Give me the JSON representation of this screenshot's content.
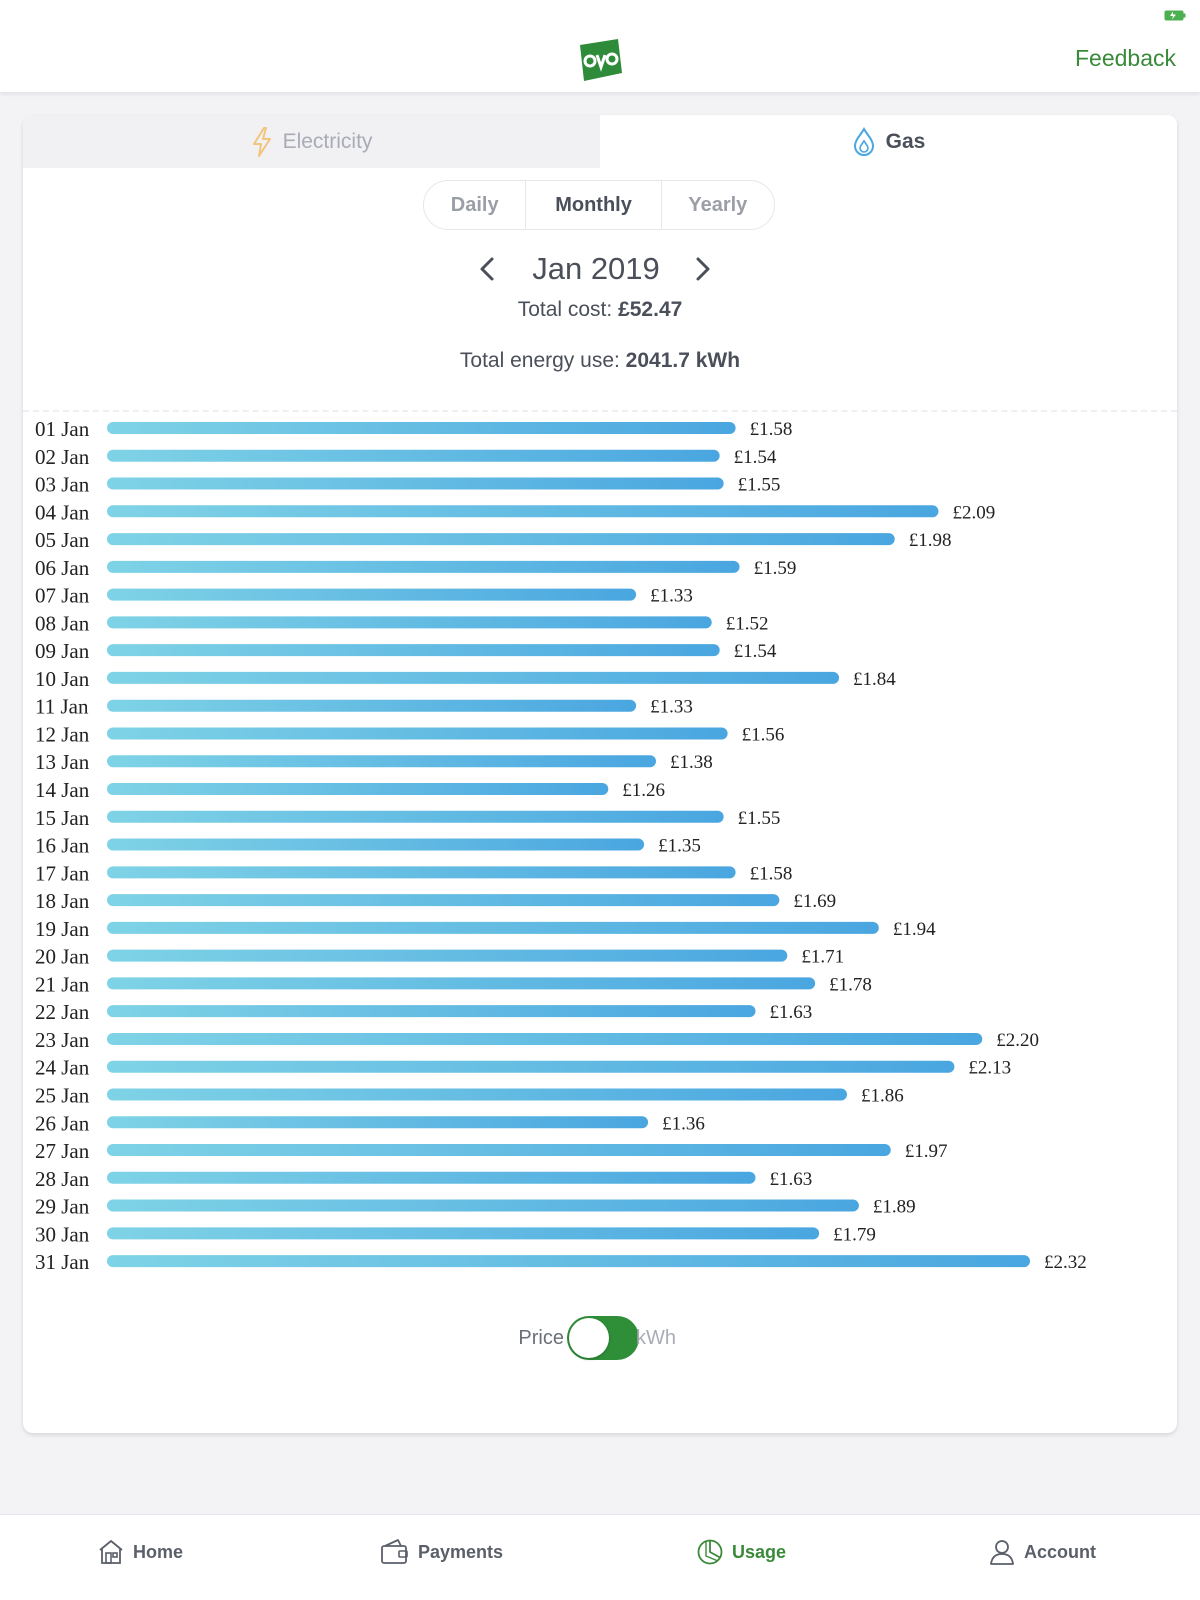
{
  "header": {
    "feedback_label": "Feedback"
  },
  "colors": {
    "brand_green": "#3a8a3a",
    "bar_start": "#7fd3e6",
    "bar_end": "#4aa6e0",
    "toggle_on": "#2f8f39"
  },
  "tabs": [
    {
      "label": "Electricity",
      "icon": "lightning-icon",
      "active": false
    },
    {
      "label": "Gas",
      "icon": "flame-drop-icon",
      "active": true
    }
  ],
  "periods": [
    {
      "label": "Daily",
      "active": false
    },
    {
      "label": "Monthly",
      "active": true
    },
    {
      "label": "Yearly",
      "active": false
    }
  ],
  "month": {
    "label": "Jan 2019"
  },
  "summary": {
    "cost_label": "Total cost: ",
    "cost_value": "£52.47",
    "energy_label": "Total energy use: ",
    "energy_value": "2041.7 kWh"
  },
  "chart_data": {
    "type": "bar",
    "orientation": "horizontal",
    "categories": [
      "01 Jan",
      "02 Jan",
      "03 Jan",
      "04 Jan",
      "05 Jan",
      "06 Jan",
      "07 Jan",
      "08 Jan",
      "09 Jan",
      "10 Jan",
      "11 Jan",
      "12 Jan",
      "13 Jan",
      "14 Jan",
      "15 Jan",
      "16 Jan",
      "17 Jan",
      "18 Jan",
      "19 Jan",
      "20 Jan",
      "21 Jan",
      "22 Jan",
      "23 Jan",
      "24 Jan",
      "25 Jan",
      "26 Jan",
      "27 Jan",
      "28 Jan",
      "29 Jan",
      "30 Jan",
      "31 Jan"
    ],
    "values": [
      1.58,
      1.54,
      1.55,
      2.09,
      1.98,
      1.59,
      1.33,
      1.52,
      1.54,
      1.84,
      1.33,
      1.56,
      1.38,
      1.26,
      1.55,
      1.35,
      1.58,
      1.69,
      1.94,
      1.71,
      1.78,
      1.63,
      2.2,
      2.13,
      1.86,
      1.36,
      1.97,
      1.63,
      1.89,
      1.79,
      2.32
    ],
    "value_labels": [
      "£1.58",
      "£1.54",
      "£1.55",
      "£2.09",
      "£1.98",
      "£1.59",
      "£1.33",
      "£1.52",
      "£1.54",
      "£1.84",
      "£1.33",
      "£1.56",
      "£1.38",
      "£1.26",
      "£1.55",
      "£1.35",
      "£1.58",
      "£1.69",
      "£1.94",
      "£1.71",
      "£1.78",
      "£1.63",
      "£2.20",
      "£2.13",
      "£1.86",
      "£1.36",
      "£1.97",
      "£1.63",
      "£1.89",
      "£1.79",
      "£2.32"
    ],
    "xlim": [
      0,
      2.32
    ],
    "grid": false,
    "title": "",
    "xlabel": "",
    "ylabel": ""
  },
  "toggle": {
    "left_label": "Price",
    "right_label": "kWh",
    "selected": "Price"
  },
  "bottom_nav": [
    {
      "label": "Home",
      "icon": "home-icon",
      "active": false
    },
    {
      "label": "Payments",
      "icon": "wallet-icon",
      "active": false
    },
    {
      "label": "Usage",
      "icon": "usage-pie-icon",
      "active": true
    },
    {
      "label": "Account",
      "icon": "account-icon",
      "active": false
    }
  ]
}
